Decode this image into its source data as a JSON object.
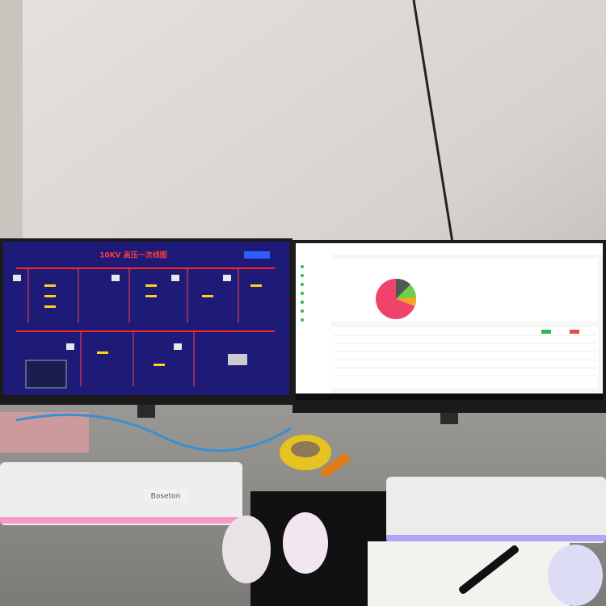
{
  "left_monitor": {
    "title": "10KV 高压一次线图"
  },
  "keyboard": {
    "brand": "Boseton"
  }
}
